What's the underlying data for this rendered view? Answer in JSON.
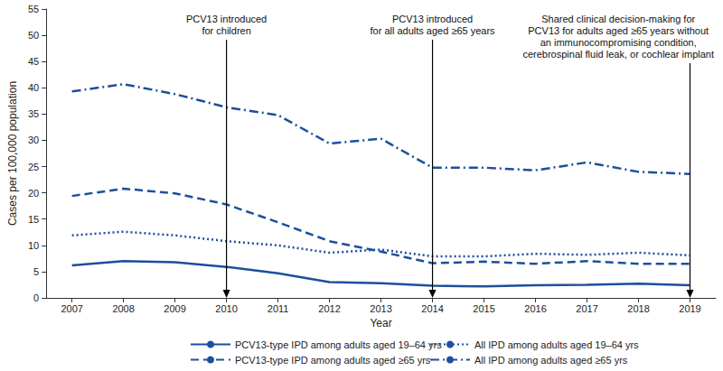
{
  "chart_data": {
    "type": "line",
    "x_label": "Year",
    "y_label": "Cases per 100,000 population",
    "categories": [
      "2007",
      "2008",
      "2009",
      "2010",
      "2011",
      "2012",
      "2013",
      "2014",
      "2015",
      "2016",
      "2017",
      "2018",
      "2019"
    ],
    "series": [
      {
        "name": "PCV13-type IPD among adults aged 19–64 yrs",
        "color": "#1c4f9c",
        "line_style": "solid",
        "values": [
          6.2,
          7.0,
          6.8,
          5.9,
          4.7,
          3.0,
          2.8,
          2.3,
          2.2,
          2.4,
          2.5,
          2.7,
          2.4
        ]
      },
      {
        "name": "PCV13-type IPD among adults aged ≥65 yrs",
        "color": "#1c4f9c",
        "line_style": "dashed",
        "values": [
          19.4,
          20.8,
          19.9,
          17.8,
          14.4,
          10.8,
          8.8,
          6.6,
          6.9,
          6.5,
          7.0,
          6.5,
          6.5
        ]
      },
      {
        "name": "All IPD among adults aged 19–64 yrs",
        "color": "#1c4f9c",
        "line_style": "dotted",
        "values": [
          11.9,
          12.6,
          11.9,
          10.8,
          10.0,
          8.6,
          9.2,
          7.9,
          7.9,
          8.4,
          8.2,
          8.6,
          8.1
        ]
      },
      {
        "name": "All IPD among adults aged ≥65 yrs",
        "color": "#1c4f9c",
        "line_style": "dashdot",
        "values": [
          39.3,
          40.7,
          38.8,
          36.3,
          34.8,
          29.4,
          30.3,
          24.8,
          24.8,
          24.3,
          25.8,
          24.0,
          23.6
        ]
      }
    ],
    "ylim": [
      0,
      55
    ],
    "yticks": [
      0,
      5,
      10,
      15,
      20,
      25,
      30,
      35,
      40,
      45,
      50,
      55
    ],
    "grid": false,
    "legend": "bottom",
    "marker": "none",
    "annotations": [
      {
        "x": "2010",
        "text": "PCV13 introduced\nfor children"
      },
      {
        "x": "2014",
        "text": "PCV13 introduced\nfor all adults aged ≥65 years"
      },
      {
        "x": "2019",
        "text": "Shared clinical decision-making for\nPCV13 for adults aged ≥65 years without\nan immunocompromising condition,\ncerebrospinal fluid leak, or cochlear implant"
      }
    ]
  }
}
